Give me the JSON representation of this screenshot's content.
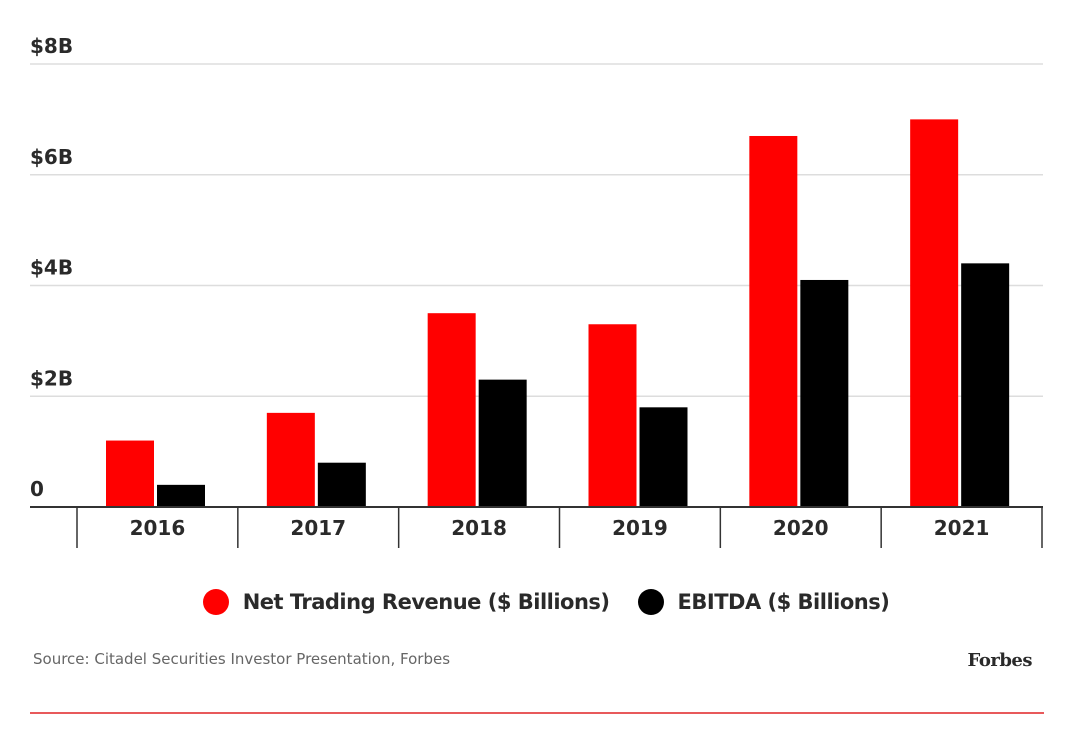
{
  "chart_data": {
    "type": "bar",
    "title": "",
    "xlabel": "",
    "ylabel": "",
    "categories": [
      "2016",
      "2017",
      "2018",
      "2019",
      "2020",
      "2021"
    ],
    "series": [
      {
        "name": "Net Trading Revenue ($ Billions)",
        "color": "#ff0000",
        "values": [
          1.2,
          1.7,
          3.5,
          3.3,
          6.7,
          7.0
        ]
      },
      {
        "name": "EBITDA ($ Billions)",
        "color": "#000000",
        "values": [
          0.4,
          0.8,
          2.3,
          1.8,
          4.1,
          4.4
        ]
      }
    ],
    "ylim": [
      0,
      8
    ],
    "yticks": [
      0,
      2,
      4,
      6,
      8
    ],
    "ytick_labels": [
      "0",
      "$2B",
      "$4B",
      "$6B",
      "$8B"
    ],
    "grid": true,
    "legend_position": "bottom"
  },
  "footer": {
    "source": "Source: Citadel Securities Investor Presentation, Forbes",
    "brand": "Forbes",
    "rule_color": "#e8595b"
  },
  "colors": {
    "gridline": "#dddddd",
    "axis": "#333333",
    "text": "#2a2a2a"
  }
}
